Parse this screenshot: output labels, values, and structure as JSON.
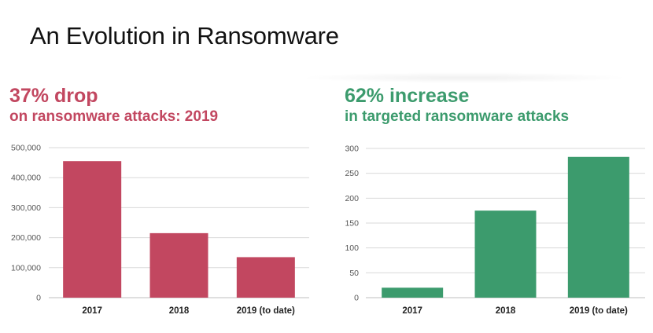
{
  "page": {
    "title": "An Evolution in Ransomware"
  },
  "panels": [
    {
      "headline": "37% drop",
      "subline": "on ransomware attacks: 2019",
      "color": "#c24760"
    },
    {
      "headline": "62% increase",
      "subline": "in targeted ransomware attacks",
      "color": "#3c9b6d"
    }
  ],
  "chart_data": [
    {
      "type": "bar",
      "title": "",
      "xlabel": "",
      "ylabel": "",
      "categories": [
        "2017",
        "2018",
        "2019 (to date)"
      ],
      "values": [
        455000,
        215000,
        135000
      ],
      "ylim": [
        0,
        500000
      ],
      "yticks": [
        0,
        100000,
        200000,
        300000,
        400000,
        500000
      ],
      "ytick_labels": [
        "0",
        "100,000",
        "200,000",
        "300,000",
        "400,000",
        "500,000"
      ],
      "color": "#c24760",
      "grid": true
    },
    {
      "type": "bar",
      "title": "",
      "xlabel": "",
      "ylabel": "",
      "categories": [
        "2017",
        "2018",
        "2019 (to date)"
      ],
      "values": [
        20,
        175,
        283
      ],
      "ylim": [
        0,
        300
      ],
      "yticks": [
        0,
        50,
        100,
        150,
        200,
        250,
        300
      ],
      "ytick_labels": [
        "0",
        "50",
        "100",
        "150",
        "200",
        "250",
        "300"
      ],
      "color": "#3c9b6d",
      "grid": true
    }
  ]
}
